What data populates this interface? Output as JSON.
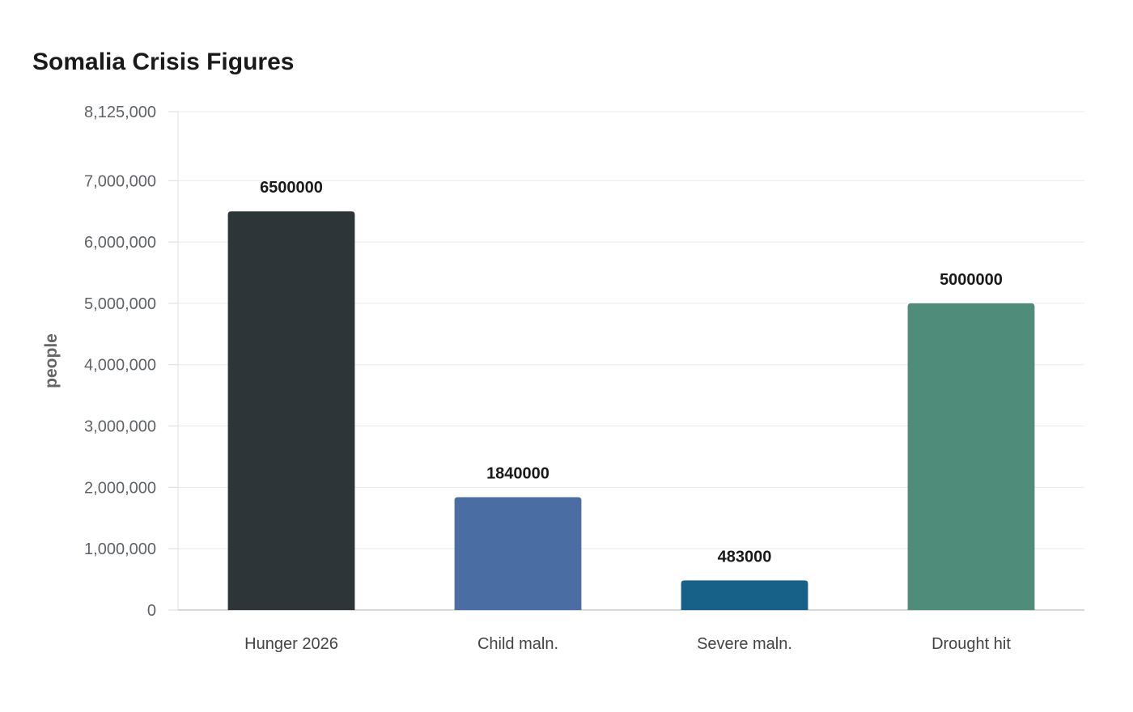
{
  "chart_data": {
    "type": "bar",
    "title": "Somalia Crisis Figures",
    "xlabel": "",
    "ylabel": "people",
    "categories": [
      "Hunger 2026",
      "Child maln.",
      "Severe maln.",
      "Drought hit"
    ],
    "values": [
      6500000,
      1840000,
      483000,
      5000000
    ],
    "data_labels": [
      "6500000",
      "1840000",
      "483000",
      "5000000"
    ],
    "colors": [
      "#2e3538",
      "#4a6ea3",
      "#176088",
      "#4f8c7a"
    ],
    "ylim": [
      0,
      8125000
    ],
    "yticks": [
      0,
      1000000,
      2000000,
      3000000,
      4000000,
      5000000,
      6000000,
      7000000,
      8125000
    ],
    "ytick_labels": [
      "0",
      "1,000,000",
      "2,000,000",
      "3,000,000",
      "4,000,000",
      "5,000,000",
      "6,000,000",
      "7,000,000",
      "8,125,000"
    ],
    "grid": true,
    "legend": "none"
  }
}
